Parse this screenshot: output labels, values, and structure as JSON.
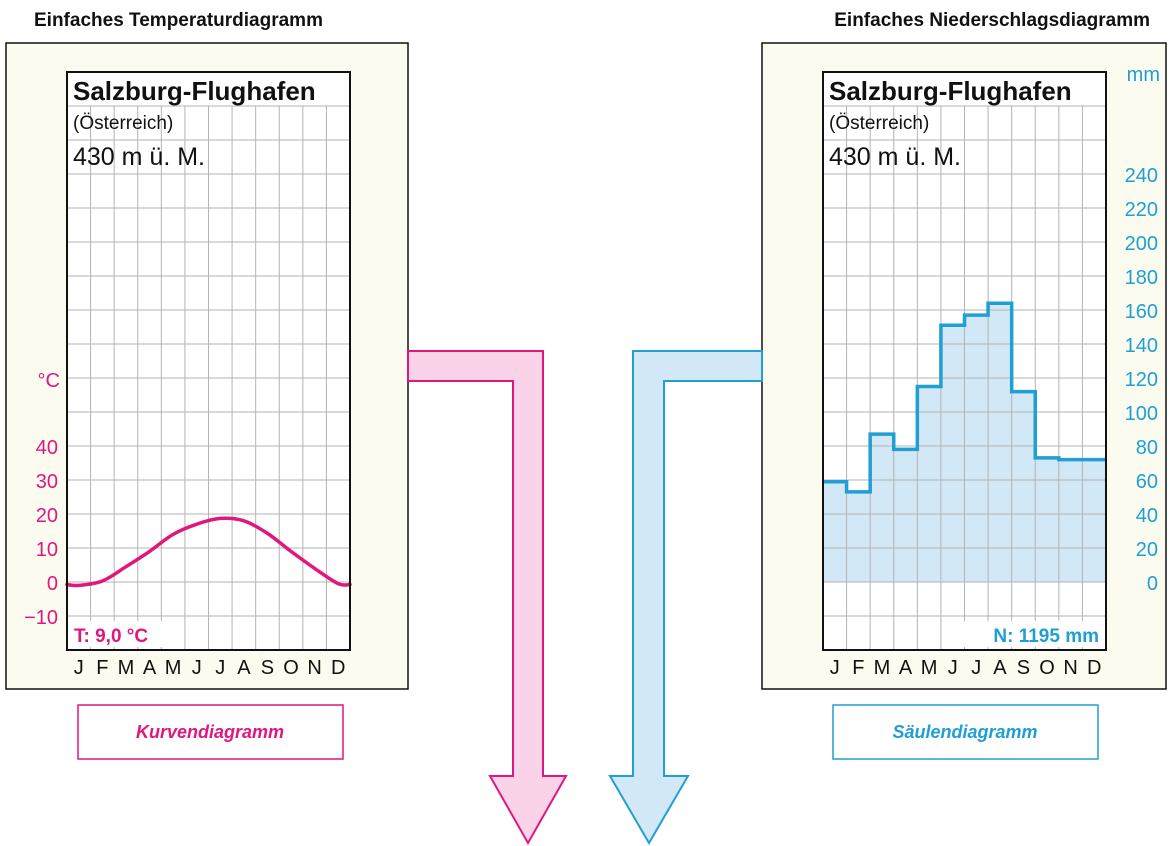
{
  "colors": {
    "temp": "#e0177e",
    "precip": "#1f9fd3",
    "temp_fill": "#fad3e8",
    "precip_fill": "#d2e8f6",
    "panel_bg": "#fbfbef",
    "grid": "#b3b3b3",
    "frame": "#111111"
  },
  "left": {
    "section_title": "Einfaches Temperaturdiagramm",
    "station": "Salzburg-Flughafen",
    "country": "(Österreich)",
    "altitude": "430 m ü. M.",
    "unit": "°C",
    "summary": "T: 9,0 °C",
    "caption": "Kurvendiagramm"
  },
  "right": {
    "section_title": "Einfaches Niederschlagsdiagramm",
    "station": "Salzburg-Flughafen",
    "country": "(Österreich)",
    "altitude": "430 m ü. M.",
    "unit": "mm",
    "summary": "N: 1195 mm",
    "caption": "Säulendiagramm"
  },
  "chart_data": [
    {
      "type": "line",
      "title": "Salzburg-Flughafen",
      "subtitle": "(Österreich) 430 m ü. M.",
      "ylabel": "°C",
      "categories": [
        "J",
        "F",
        "M",
        "A",
        "M",
        "J",
        "J",
        "A",
        "S",
        "O",
        "N",
        "D"
      ],
      "series": [
        {
          "values": [
            -1.0,
            0.3,
            4.5,
            9.0,
            14.0,
            17.0,
            18.7,
            18.0,
            14.3,
            9.0,
            4.0,
            -0.5
          ]
        }
      ],
      "yticks": [
        -10,
        0,
        10,
        20,
        30,
        40
      ],
      "ylim": [
        -10,
        40
      ],
      "grid": true,
      "annotation": "T: 9,0 °C"
    },
    {
      "type": "bar",
      "title": "Salzburg-Flughafen",
      "subtitle": "(Österreich) 430 m ü. M.",
      "ylabel": "mm",
      "categories": [
        "J",
        "F",
        "M",
        "A",
        "M",
        "J",
        "J",
        "A",
        "S",
        "O",
        "N",
        "D"
      ],
      "values": [
        59,
        53,
        87,
        78,
        115,
        151,
        157,
        164,
        112,
        73,
        72,
        72
      ],
      "yticks": [
        0,
        20,
        40,
        60,
        80,
        100,
        120,
        140,
        160,
        180,
        200,
        220,
        240
      ],
      "ylim": [
        0,
        240
      ],
      "grid": true,
      "annotation": "N: 1195 mm"
    }
  ]
}
